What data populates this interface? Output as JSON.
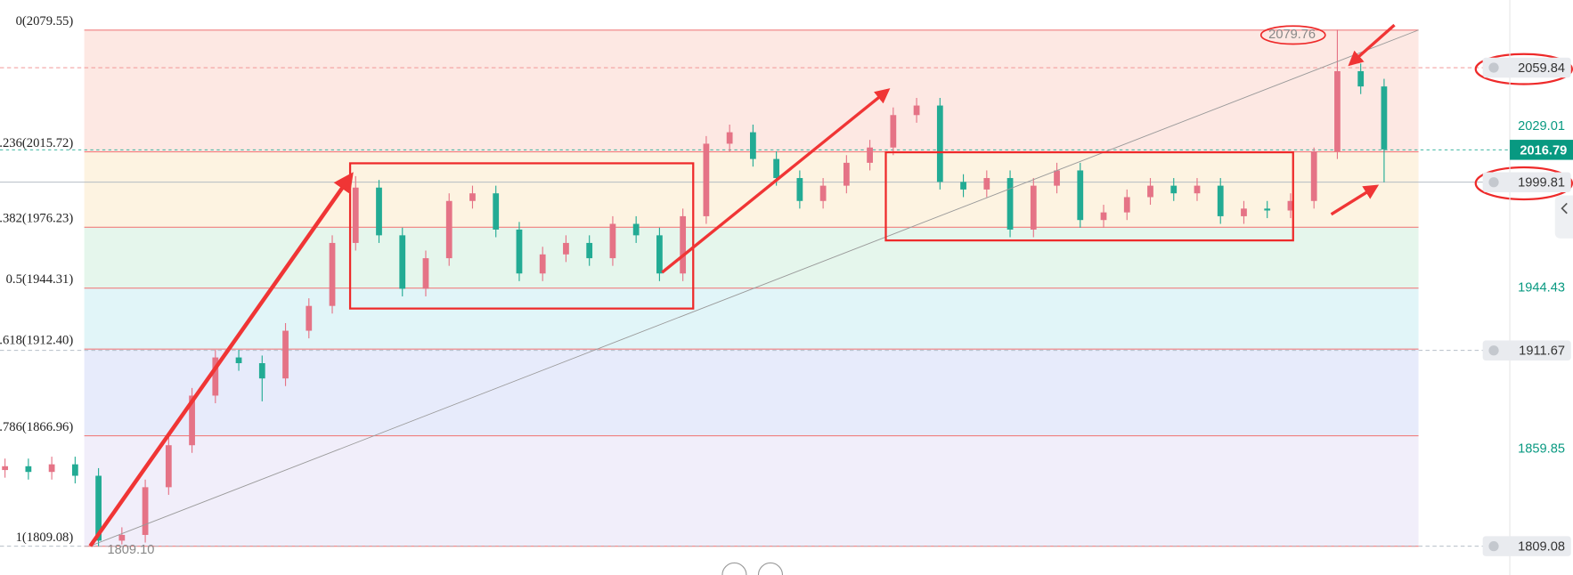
{
  "chart_data": {
    "type": "candlestick",
    "ylim": [
      1794,
      2095.3
    ],
    "up_color": "#e57386",
    "down_color": "#22ab94",
    "fib_levels": [
      {
        "value": 2079.55,
        "label": "0(2079.55)"
      },
      {
        "value": 2015.72,
        "label": ".236(2015.72)"
      },
      {
        "value": 1976.23,
        "label": ".382(1976.23)"
      },
      {
        "value": 1944.31,
        "label": "0.5(1944.31)"
      },
      {
        "value": 1912.4,
        "label": ".618(1912.40)"
      },
      {
        "value": 1866.96,
        "label": ".786(1866.96)"
      },
      {
        "value": 1809.08,
        "label": "1(1809.08)"
      }
    ],
    "band_colors": [
      "#fde8e3",
      "#fdf3e1",
      "#e5f6ec",
      "#e1f5f8",
      "#e7ebfb",
      "#f1eefa"
    ],
    "fib_line_color": "#f07f7f",
    "axis_labels": [
      2029.01,
      1944.43,
      1859.85
    ],
    "alerts": [
      2059.84,
      1999.81,
      1911.67,
      1809.08
    ],
    "current_price": 2016.79,
    "high_label": 2079.76,
    "low_label": {
      "value": 1809.1,
      "label": "1809.10"
    },
    "open": [
      1849,
      1851,
      1848,
      1852,
      1846,
      1812,
      1815,
      1840,
      1862,
      1888,
      1908,
      1905,
      1897,
      1922,
      1935,
      1968,
      1997,
      1972,
      1944,
      1960,
      1990,
      1994,
      1975,
      1952,
      1962,
      1968,
      1960,
      1978,
      1972,
      1952,
      1982,
      2020,
      2026,
      2012,
      2002,
      1990,
      1998,
      2010,
      2018,
      2035,
      2040,
      2000,
      1996,
      2002,
      1975,
      1998,
      2006,
      1980,
      1984,
      1992,
      1998,
      1994,
      1998,
      1982,
      1986,
      1985,
      1990,
      2016,
      2058,
      2050
    ],
    "high": [
      1855,
      1855,
      1856,
      1856,
      1850,
      1819,
      1844,
      1866,
      1892,
      1912,
      1912,
      1909,
      1926,
      1939,
      1972,
      2003,
      2001,
      1976,
      1964,
      1994,
      1998,
      1998,
      1979,
      1966,
      1972,
      1972,
      1982,
      1982,
      1976,
      1986,
      2024,
      2030,
      2030,
      2016,
      2006,
      2002,
      2014,
      2022,
      2039,
      2044,
      2044,
      2004,
      2006,
      2006,
      2002,
      2010,
      2010,
      1988,
      1996,
      2002,
      2002,
      2002,
      2002,
      1990,
      1990,
      1994,
      2018,
      2079.76,
      2062,
      2054
    ],
    "low": [
      1845,
      1844,
      1844,
      1842,
      1809.1,
      1810,
      1811,
      1836,
      1858,
      1884,
      1901,
      1885,
      1893,
      1918,
      1931,
      1964,
      1968,
      1940,
      1940,
      1956,
      1986,
      1971,
      1948,
      1948,
      1958,
      1956,
      1956,
      1968,
      1948,
      1948,
      1978,
      2016,
      2008,
      1998,
      1986,
      1986,
      1994,
      2006,
      2014,
      2031,
      1996,
      1992,
      1992,
      1971,
      1971,
      1994,
      1976,
      1976,
      1980,
      1988,
      1990,
      1990,
      1978,
      1978,
      1981,
      1981,
      1986,
      2012,
      2046,
      1999.81
    ],
    "close": [
      1851,
      1848,
      1852,
      1846,
      1812,
      1815,
      1840,
      1862,
      1888,
      1908,
      1905,
      1897,
      1922,
      1935,
      1968,
      1997,
      1972,
      1944,
      1960,
      1990,
      1994,
      1975,
      1952,
      1962,
      1968,
      1960,
      1978,
      1972,
      1952,
      1982,
      2020,
      2026,
      2012,
      2002,
      1990,
      1998,
      2010,
      2018,
      2035,
      2040,
      2000,
      1996,
      2002,
      1975,
      1998,
      2006,
      1980,
      1984,
      1992,
      1998,
      1994,
      1998,
      1982,
      1986,
      1985,
      1990,
      2016,
      2058,
      2050,
      2017
    ]
  }
}
